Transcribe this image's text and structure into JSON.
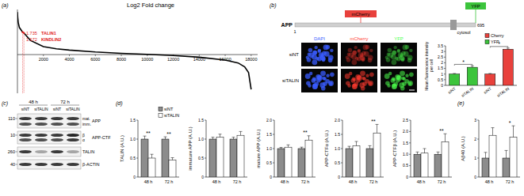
{
  "panel_labels": [
    "(a)",
    "(b)",
    "(c)",
    "(d)",
    "(e)"
  ],
  "chart_data": [
    {
      "type": "line",
      "title": "Log2 Fold change",
      "x": [
        0,
        20,
        60,
        150,
        400,
        500,
        1000,
        2000,
        3000,
        4000,
        6000,
        8000,
        10000,
        12000,
        14000,
        16000,
        17000,
        17500,
        17800,
        18000
      ],
      "values": [
        3.3,
        2.9,
        2.5,
        2.1,
        1.74,
        1.67,
        1.1,
        0.62,
        0.45,
        0.35,
        0.2,
        0.1,
        0.02,
        -0.07,
        -0.2,
        -0.42,
        -0.65,
        -0.95,
        -1.4,
        -2.7
      ],
      "color": "#000000",
      "xlim": [
        0,
        18500
      ],
      "ylim": [
        -3,
        3.5
      ],
      "xticks": [
        2000,
        4000,
        6000,
        8000,
        10000,
        12000,
        14000,
        16000,
        18000
      ],
      "tick_labels": "x",
      "annotations": [
        {
          "label": "TALIN1",
          "value": 1.735,
          "x": 400,
          "color": "#e02020"
        },
        {
          "label": "KINDLIN2",
          "value": 1.672,
          "x": 500,
          "color": "#e02020"
        }
      ]
    },
    {
      "type": "bar",
      "ylabel": "Mean fluorescence intensity per cell",
      "categories": [
        "siNT",
        "siTALIN",
        "siNT",
        "siTALIN"
      ],
      "series": [
        {
          "name": "Cherry",
          "color": "#e8413c",
          "values": [
            null,
            null,
            1.0,
            3.2
          ],
          "errors": [
            null,
            null,
            0.05,
            0.1
          ]
        },
        {
          "name": "YFP",
          "color": "#3cc43c",
          "values": [
            1.0,
            1.6,
            null,
            null
          ],
          "errors": [
            0.05,
            0.12,
            null,
            null
          ]
        }
      ],
      "ylim": [
        0,
        3.5
      ],
      "yticks": [
        0,
        0.5,
        1,
        1.5,
        2,
        2.5,
        3,
        3.5
      ],
      "legend": "top-right",
      "significance": [
        {
          "label": "*",
          "from": 0,
          "to": 1
        },
        {
          "label": "*",
          "from": 2,
          "to": 3
        }
      ]
    },
    {
      "type": "bar",
      "ylabel": "TALIN (A.U.)",
      "categories": [
        "48 h",
        "72 h"
      ],
      "series": [
        {
          "name": "siNT",
          "color": "#8c8c8c",
          "values": [
            1.0,
            1.0
          ],
          "errors": [
            0.08,
            0.06
          ]
        },
        {
          "name": "siTALIN",
          "color": "#ffffff",
          "values": [
            0.5,
            0.45
          ],
          "errors": [
            0.1,
            0.06
          ]
        }
      ],
      "ylim": [
        0,
        1.5
      ],
      "yticks": [
        0,
        0.5,
        {
          "value": 1,
          "label": "1.0"
        },
        1.5
      ],
      "legend": "top-left",
      "significance": [
        {
          "label": "**",
          "category": 0
        },
        {
          "label": "**",
          "category": 1
        }
      ]
    },
    {
      "type": "bar",
      "ylabel": "immature APP (A.U.)",
      "categories": [
        "48 h",
        "72 h"
      ],
      "series": [
        {
          "color": "#8c8c8c",
          "values": [
            1.0,
            1.0
          ],
          "errors": [
            0.05,
            0.05
          ]
        },
        {
          "color": "#ffffff",
          "values": [
            1.05,
            1.1
          ],
          "errors": [
            0.08,
            0.1
          ]
        }
      ],
      "ylim": [
        0,
        1.5
      ],
      "yticks": [
        0,
        0.5,
        {
          "value": 1,
          "label": "1.0"
        },
        1.5
      ]
    },
    {
      "type": "bar",
      "ylabel": "mature APP (A.U.)",
      "categories": [
        "48 h",
        "72 h"
      ],
      "series": [
        {
          "color": "#8c8c8c",
          "values": [
            1.0,
            1.0
          ],
          "errors": [
            0.04,
            0.05
          ]
        },
        {
          "color": "#ffffff",
          "values": [
            1.05,
            1.3
          ],
          "errors": [
            0.08,
            0.15
          ]
        }
      ],
      "ylim": [
        0,
        2
      ],
      "yticks": [
        0,
        0.5,
        {
          "value": 1,
          "label": "1.0"
        },
        1.5,
        {
          "value": 2,
          "label": "2.0"
        }
      ],
      "significance": [
        {
          "label": "**",
          "category": 1
        }
      ]
    },
    {
      "type": "bar",
      "ylabel": "APP-CTFα (A.U.)",
      "categories": [
        "48 h",
        "72 h"
      ],
      "series": [
        {
          "color": "#8c8c8c",
          "values": [
            1.0,
            1.0
          ],
          "errors": [
            0.08,
            0.1
          ]
        },
        {
          "color": "#ffffff",
          "values": [
            1.1,
            1.55
          ],
          "errors": [
            0.15,
            0.3
          ]
        }
      ],
      "ylim": [
        0,
        2
      ],
      "yticks": [
        0,
        0.5,
        {
          "value": 1,
          "label": "1.0"
        },
        1.5,
        {
          "value": 2,
          "label": "2.0"
        }
      ],
      "significance": [
        {
          "label": "**",
          "category": 1
        }
      ]
    },
    {
      "type": "bar",
      "ylabel": "APP-CTFβ (A.U.)",
      "categories": [
        "48 h",
        "72 h"
      ],
      "series": [
        {
          "color": "#8c8c8c",
          "values": [
            1.0,
            1.0
          ],
          "errors": [
            0.1,
            0.1
          ]
        },
        {
          "color": "#ffffff",
          "values": [
            1.05,
            1.55
          ],
          "errors": [
            0.2,
            0.35
          ]
        }
      ],
      "ylim": [
        0,
        2.5
      ],
      "yticks": [
        0,
        0.5,
        {
          "value": 1,
          "label": "1.0"
        },
        1.5,
        {
          "value": 2,
          "label": "2.0"
        },
        2.5
      ],
      "significance": [
        {
          "label": "**",
          "category": 1
        }
      ]
    },
    {
      "type": "bar",
      "ylabel": "Aβ40 (A.U.)",
      "categories": [
        "48 h",
        "72 h"
      ],
      "series": [
        {
          "color": "#8c8c8c",
          "values": [
            1.0,
            1.0
          ],
          "errors": [
            0.3,
            0.4
          ]
        },
        {
          "color": "#ffffff",
          "values": [
            2.2,
            2.1
          ],
          "errors": [
            0.4,
            0.6
          ]
        }
      ],
      "ylim": [
        0,
        3
      ],
      "yticks": [
        0,
        1,
        2,
        3
      ],
      "significance": [
        {
          "label": "*",
          "category": 1
        }
      ]
    }
  ],
  "app_schematic": {
    "protein": "APP",
    "start": "1",
    "end": "695",
    "tags": [
      "mCherry",
      "YFP"
    ],
    "region": "cytosol"
  },
  "microscopy": {
    "channels": [
      "DAPI",
      "mCherry",
      "YFP"
    ],
    "rows": [
      "siNT",
      "siTALIN"
    ]
  },
  "western_blot": {
    "times": [
      "48 h",
      "72 h"
    ],
    "conditions": [
      "siNT",
      "siTALIN",
      "siNT",
      "siTALIN"
    ],
    "rows": [
      {
        "mw": "110",
        "protein": "APP",
        "bands": [
          "mat.",
          "imm."
        ]
      },
      {
        "mw": "10",
        "protein": "APP-CTF",
        "bands": [
          "β",
          "α"
        ]
      },
      {
        "mw": "260",
        "protein": "TALIN"
      },
      {
        "mw": "40",
        "protein": "β-ACTIN"
      }
    ]
  }
}
